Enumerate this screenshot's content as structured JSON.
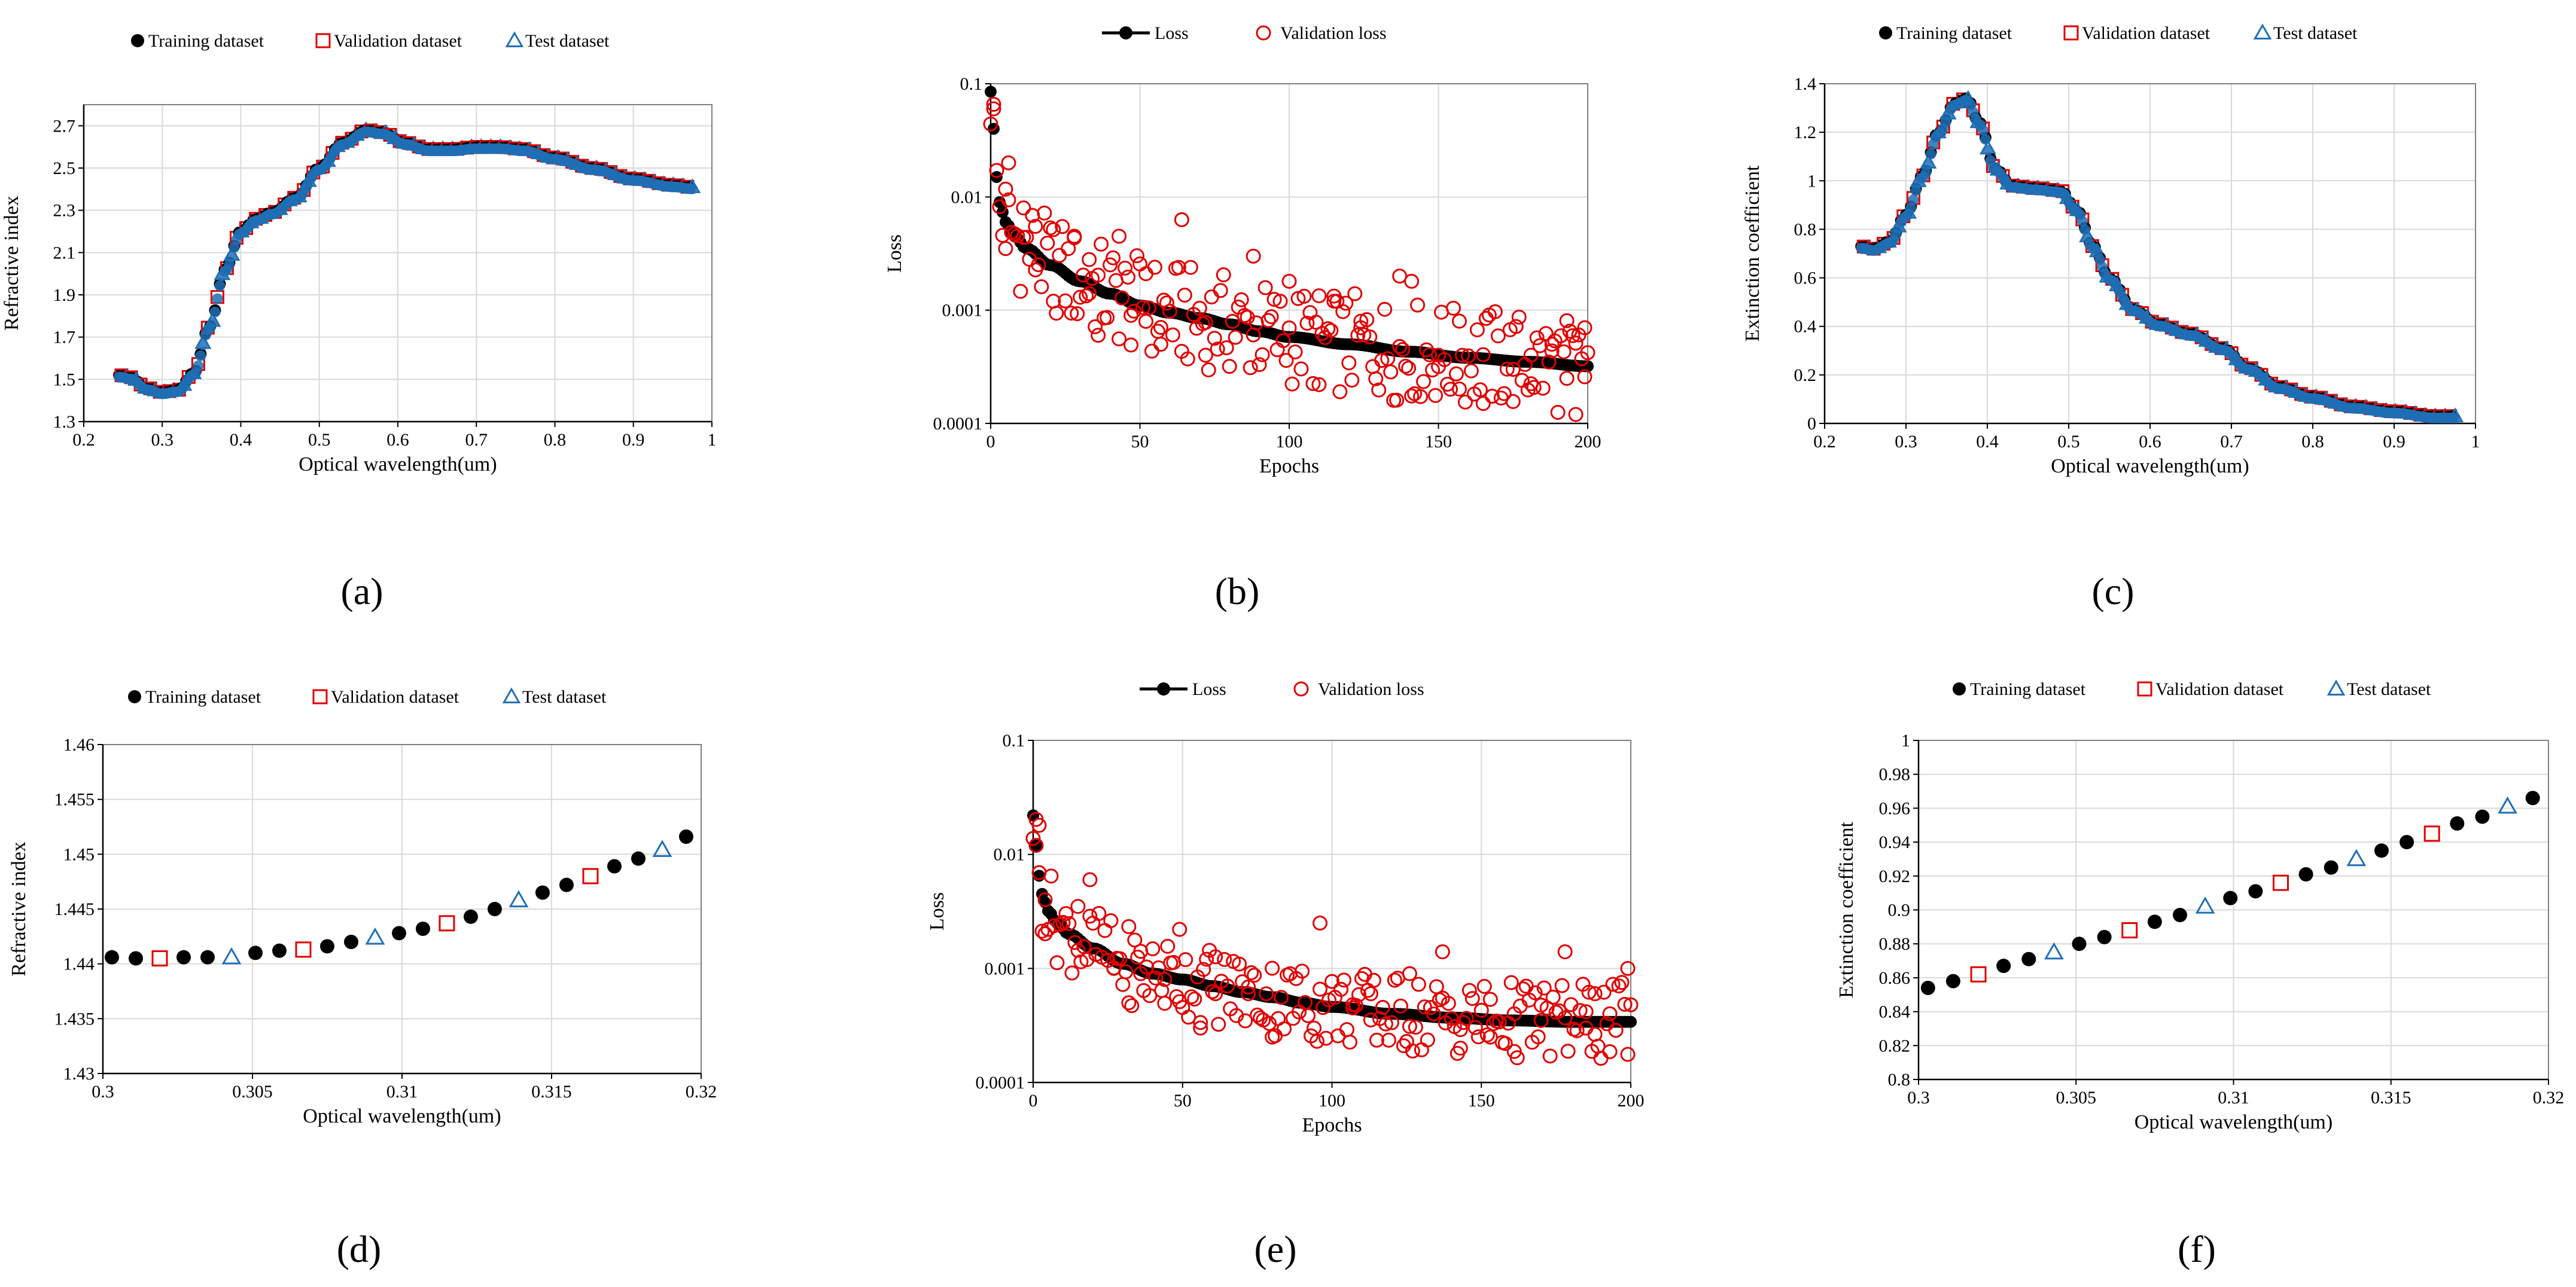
{
  "figure": {
    "panel_captions": [
      "(a)",
      "(b)",
      "(c)",
      "(d)",
      "(e)",
      "(f)"
    ]
  },
  "colors": {
    "training": "#000000",
    "validation": "#e00000",
    "test": "#1f6fb5",
    "grid": "#d9d9d9",
    "loss_line": "#000000",
    "val_loss": "#e00000"
  },
  "chart_data": [
    {
      "id": "a",
      "type": "scatter",
      "subtype": "refractive-dense",
      "caption": "(a)",
      "title": "",
      "xlabel": "Optical wavelength(um)",
      "ylabel": "Refractive index",
      "xlim": [
        0.2,
        1.0
      ],
      "ylim": [
        1.3,
        2.8
      ],
      "xticks": [
        0.2,
        0.3,
        0.4,
        0.5,
        0.6,
        0.7,
        0.8,
        0.9,
        1.0
      ],
      "xtick_labels": [
        "0.2",
        "0.3",
        "0.4",
        "0.5",
        "0.6",
        "0.7",
        "0.8",
        "0.9",
        "1"
      ],
      "yticks": [
        1.3,
        1.5,
        1.7,
        1.9,
        2.1,
        2.3,
        2.5,
        2.7
      ],
      "ytick_labels": [
        "1.3",
        "1.5",
        "1.7",
        "1.9",
        "2.1",
        "2.3",
        "2.5",
        "2.7"
      ],
      "grid": true,
      "legend": [
        "Training dataset",
        "Validation dataset",
        "Test dataset"
      ],
      "legend_position": "top",
      "curve": {
        "x": [
          0.245,
          0.26,
          0.28,
          0.3,
          0.32,
          0.34,
          0.36,
          0.38,
          0.4,
          0.42,
          0.44,
          0.47,
          0.5,
          0.53,
          0.56,
          0.58,
          0.61,
          0.64,
          0.67,
          0.7,
          0.73,
          0.76,
          0.8,
          0.85,
          0.9,
          0.95,
          0.975
        ],
        "y": [
          1.52,
          1.51,
          1.46,
          1.44,
          1.45,
          1.53,
          1.75,
          2.02,
          2.2,
          2.26,
          2.29,
          2.36,
          2.5,
          2.62,
          2.68,
          2.67,
          2.62,
          2.59,
          2.59,
          2.6,
          2.6,
          2.59,
          2.55,
          2.5,
          2.45,
          2.42,
          2.41
        ]
      }
    },
    {
      "id": "b",
      "type": "line",
      "subtype": "loss",
      "caption": "(b)",
      "title": "",
      "xlabel": "Epochs",
      "ylabel": "Loss",
      "xlim": [
        0,
        200
      ],
      "ylim": [
        0.0001,
        0.1
      ],
      "yscale": "log",
      "xticks": [
        0,
        50,
        100,
        150,
        200
      ],
      "xtick_labels": [
        "0",
        "50",
        "100",
        "150",
        "200"
      ],
      "yticks": [
        0.0001,
        0.001,
        0.01,
        0.1
      ],
      "ytick_labels": [
        "0.0001",
        "0.001",
        "0.01",
        "0.1"
      ],
      "grid": true,
      "legend": [
        "Loss",
        "Validation loss"
      ],
      "legend_position": "top",
      "loss_curve": {
        "x": [
          0,
          1,
          2,
          3,
          5,
          8,
          12,
          20,
          30,
          40,
          50,
          60,
          70,
          80,
          90,
          100,
          120,
          140,
          160,
          180,
          200
        ],
        "y": [
          0.085,
          0.04,
          0.015,
          0.009,
          0.006,
          0.0045,
          0.0035,
          0.0025,
          0.0018,
          0.0014,
          0.0011,
          0.00095,
          0.00085,
          0.00075,
          0.00065,
          0.00058,
          0.0005,
          0.00043,
          0.00038,
          0.00035,
          0.00032
        ]
      },
      "val_loss_points": {
        "x": [
          1,
          5,
          6,
          11,
          15,
          21,
          28,
          33,
          36,
          43,
          47,
          52,
          57,
          64,
          72,
          88,
          100,
          110,
          115,
          124,
          137,
          141,
          150,
          157,
          165,
          175,
          181,
          188,
          193,
          196,
          199
        ],
        "y": [
          0.06,
          0.0035,
          0.02,
          0.008,
          0.0055,
          0.0012,
          0.0045,
          0.0028,
          0.0006,
          0.0045,
          0.0009,
          0.0021,
          0.0005,
          0.0063,
          0.0004,
          0.003,
          0.0018,
          0.00022,
          0.0012,
          0.0007,
          0.002,
          0.0018,
          0.0004,
          0.0008,
          0.00015,
          0.0003,
          0.0004,
          0.0005,
          0.00025,
          0.00012,
          0.0007
        ]
      },
      "val_loss_scatter": 0.45
    },
    {
      "id": "c",
      "type": "scatter",
      "subtype": "extinction-dense",
      "caption": "(c)",
      "title": "",
      "xlabel": "Optical wavelength(um)",
      "ylabel": "Extinction coefficient",
      "xlim": [
        0.2,
        1.0
      ],
      "ylim": [
        0,
        1.4
      ],
      "xticks": [
        0.2,
        0.3,
        0.4,
        0.5,
        0.6,
        0.7,
        0.8,
        0.9,
        1.0
      ],
      "xtick_labels": [
        "0.2",
        "0.3",
        "0.4",
        "0.5",
        "0.6",
        "0.7",
        "0.8",
        "0.9",
        "1"
      ],
      "yticks": [
        0,
        0.2,
        0.4,
        0.6,
        0.8,
        1.0,
        1.2,
        1.4
      ],
      "ytick_labels": [
        "0",
        "0.2",
        "0.4",
        "0.6",
        "0.8",
        "1",
        "1.2",
        "1.4"
      ],
      "grid": true,
      "legend": [
        "Training dataset",
        "Validation dataset",
        "Test dataset"
      ],
      "legend_position": "top",
      "curve": {
        "x": [
          0.245,
          0.26,
          0.28,
          0.3,
          0.32,
          0.34,
          0.36,
          0.375,
          0.39,
          0.41,
          0.43,
          0.46,
          0.49,
          0.51,
          0.53,
          0.55,
          0.58,
          0.61,
          0.65,
          0.69,
          0.72,
          0.76,
          0.8,
          0.85,
          0.9,
          0.95,
          0.975
        ],
        "y": [
          0.73,
          0.72,
          0.75,
          0.86,
          1.02,
          1.2,
          1.32,
          1.34,
          1.24,
          1.05,
          0.98,
          0.97,
          0.96,
          0.88,
          0.73,
          0.6,
          0.47,
          0.41,
          0.37,
          0.31,
          0.23,
          0.15,
          0.11,
          0.07,
          0.05,
          0.03,
          0.03
        ]
      }
    },
    {
      "id": "d",
      "type": "scatter",
      "subtype": "dataset-points",
      "caption": "(d)",
      "title": "",
      "xlabel": "Optical wavelength(um)",
      "ylabel": "Refractive index",
      "xlim": [
        0.3,
        0.32
      ],
      "ylim": [
        1.43,
        1.46
      ],
      "xticks": [
        0.3,
        0.305,
        0.31,
        0.315,
        0.32
      ],
      "xtick_labels": [
        "0.3",
        "0.305",
        "0.31",
        "0.315",
        "0.32"
      ],
      "yticks": [
        1.43,
        1.435,
        1.44,
        1.445,
        1.45,
        1.455,
        1.46
      ],
      "ytick_labels": [
        "1.43",
        "1.435",
        "1.44",
        "1.445",
        "1.45",
        "1.455",
        "1.46"
      ],
      "grid": true,
      "legend": [
        "Training dataset",
        "Validation dataset",
        "Test dataset"
      ],
      "legend_position": "top",
      "series": [
        {
          "name": "Training dataset",
          "x": [
            0.3003,
            0.3011,
            0.3027,
            0.3035,
            0.3051,
            0.3059,
            0.3075,
            0.3083,
            0.3099,
            0.3107,
            0.3123,
            0.3131,
            0.3147,
            0.3155,
            0.3171,
            0.3179,
            0.3195
          ],
          "y": [
            1.4406,
            1.4405,
            1.4406,
            1.4406,
            1.441,
            1.4412,
            1.4416,
            1.442,
            1.4428,
            1.4432,
            1.4443,
            1.445,
            1.4465,
            1.4472,
            1.4489,
            1.4496,
            1.4516
          ]
        },
        {
          "name": "Validation dataset",
          "x": [
            0.3019,
            0.3067,
            0.3115,
            0.3163
          ],
          "y": [
            1.4405,
            1.4413,
            1.4437,
            1.448
          ]
        },
        {
          "name": "Test dataset",
          "x": [
            0.3043,
            0.3091,
            0.3139,
            0.3187
          ],
          "y": [
            1.4406,
            1.4424,
            1.4458,
            1.4504
          ]
        }
      ]
    },
    {
      "id": "e",
      "type": "line",
      "subtype": "loss",
      "caption": "(e)",
      "title": "",
      "xlabel": "Epochs",
      "ylabel": "Loss",
      "xlim": [
        0,
        200
      ],
      "ylim": [
        0.0001,
        0.1
      ],
      "yscale": "log",
      "xticks": [
        0,
        50,
        100,
        150,
        200
      ],
      "xtick_labels": [
        "0",
        "50",
        "100",
        "150",
        "200"
      ],
      "yticks": [
        0.0001,
        0.001,
        0.01,
        0.1
      ],
      "ytick_labels": [
        "0.0001",
        "0.001",
        "0.01",
        "0.1"
      ],
      "grid": true,
      "legend": [
        "Loss",
        "Validation loss"
      ],
      "legend_position": "top",
      "loss_curve": {
        "x": [
          0,
          1,
          2,
          3,
          5,
          8,
          12,
          20,
          30,
          40,
          50,
          60,
          70,
          80,
          90,
          100,
          120,
          140,
          160,
          180,
          200
        ],
        "y": [
          0.022,
          0.012,
          0.0065,
          0.0045,
          0.0032,
          0.0025,
          0.002,
          0.0015,
          0.0011,
          0.0009,
          0.0008,
          0.0007,
          0.00062,
          0.00056,
          0.0005,
          0.00046,
          0.0004,
          0.00037,
          0.00035,
          0.00034,
          0.00034
        ]
      },
      "val_loss_points": {
        "x": [
          1,
          2,
          4,
          10,
          15,
          19,
          27,
          32,
          36,
          44,
          49,
          56,
          61,
          72,
          80,
          96,
          107,
          113,
          126,
          137,
          143,
          153,
          161,
          170,
          178,
          185,
          188,
          193,
          199
        ],
        "y": [
          0.012,
          0.018,
          0.004,
          0.0025,
          0.0035,
          0.006,
          0.001,
          0.0005,
          0.0009,
          0.0008,
          0.0022,
          0.0003,
          0.0006,
          0.0006,
          0.00025,
          0.0025,
          0.00045,
          0.0006,
          0.0009,
          0.0014,
          0.0002,
          0.00025,
          0.0004,
          0.00035,
          0.0014,
          0.0003,
          0.0006,
          0.0004,
          0.001
        ]
      },
      "val_loss_scatter": 0.35
    },
    {
      "id": "f",
      "type": "scatter",
      "subtype": "dataset-points",
      "caption": "(f)",
      "title": "",
      "xlabel": "Optical wavelength(um)",
      "ylabel": "Extinction coefficient",
      "xlim": [
        0.3,
        0.32
      ],
      "ylim": [
        0.8,
        1.0
      ],
      "xticks": [
        0.3,
        0.305,
        0.31,
        0.315,
        0.32
      ],
      "xtick_labels": [
        "0.3",
        "0.305",
        "0.31",
        "0.315",
        "0.32"
      ],
      "yticks": [
        0.8,
        0.82,
        0.84,
        0.86,
        0.88,
        0.9,
        0.92,
        0.94,
        0.96,
        0.98,
        1.0
      ],
      "ytick_labels": [
        "0.8",
        "0.82",
        "0.84",
        "0.86",
        "0.88",
        "0.9",
        "0.92",
        "0.94",
        "0.96",
        "0.98",
        "1"
      ],
      "grid": true,
      "legend": [
        "Training dataset",
        "Validation dataset",
        "Test dataset"
      ],
      "legend_position": "top",
      "series": [
        {
          "name": "Training dataset",
          "x": [
            0.3003,
            0.3011,
            0.3027,
            0.3035,
            0.3051,
            0.3059,
            0.3075,
            0.3083,
            0.3099,
            0.3107,
            0.3123,
            0.3131,
            0.3147,
            0.3155,
            0.3171,
            0.3179,
            0.3195
          ],
          "y": [
            0.854,
            0.858,
            0.867,
            0.871,
            0.88,
            0.884,
            0.893,
            0.897,
            0.907,
            0.911,
            0.921,
            0.925,
            0.935,
            0.94,
            0.951,
            0.955,
            0.966
          ]
        },
        {
          "name": "Validation dataset",
          "x": [
            0.3019,
            0.3067,
            0.3115,
            0.3163
          ],
          "y": [
            0.862,
            0.888,
            0.916,
            0.945
          ]
        },
        {
          "name": "Test dataset",
          "x": [
            0.3043,
            0.3091,
            0.3139,
            0.3187
          ],
          "y": [
            0.875,
            0.902,
            0.93,
            0.961
          ]
        }
      ]
    }
  ]
}
